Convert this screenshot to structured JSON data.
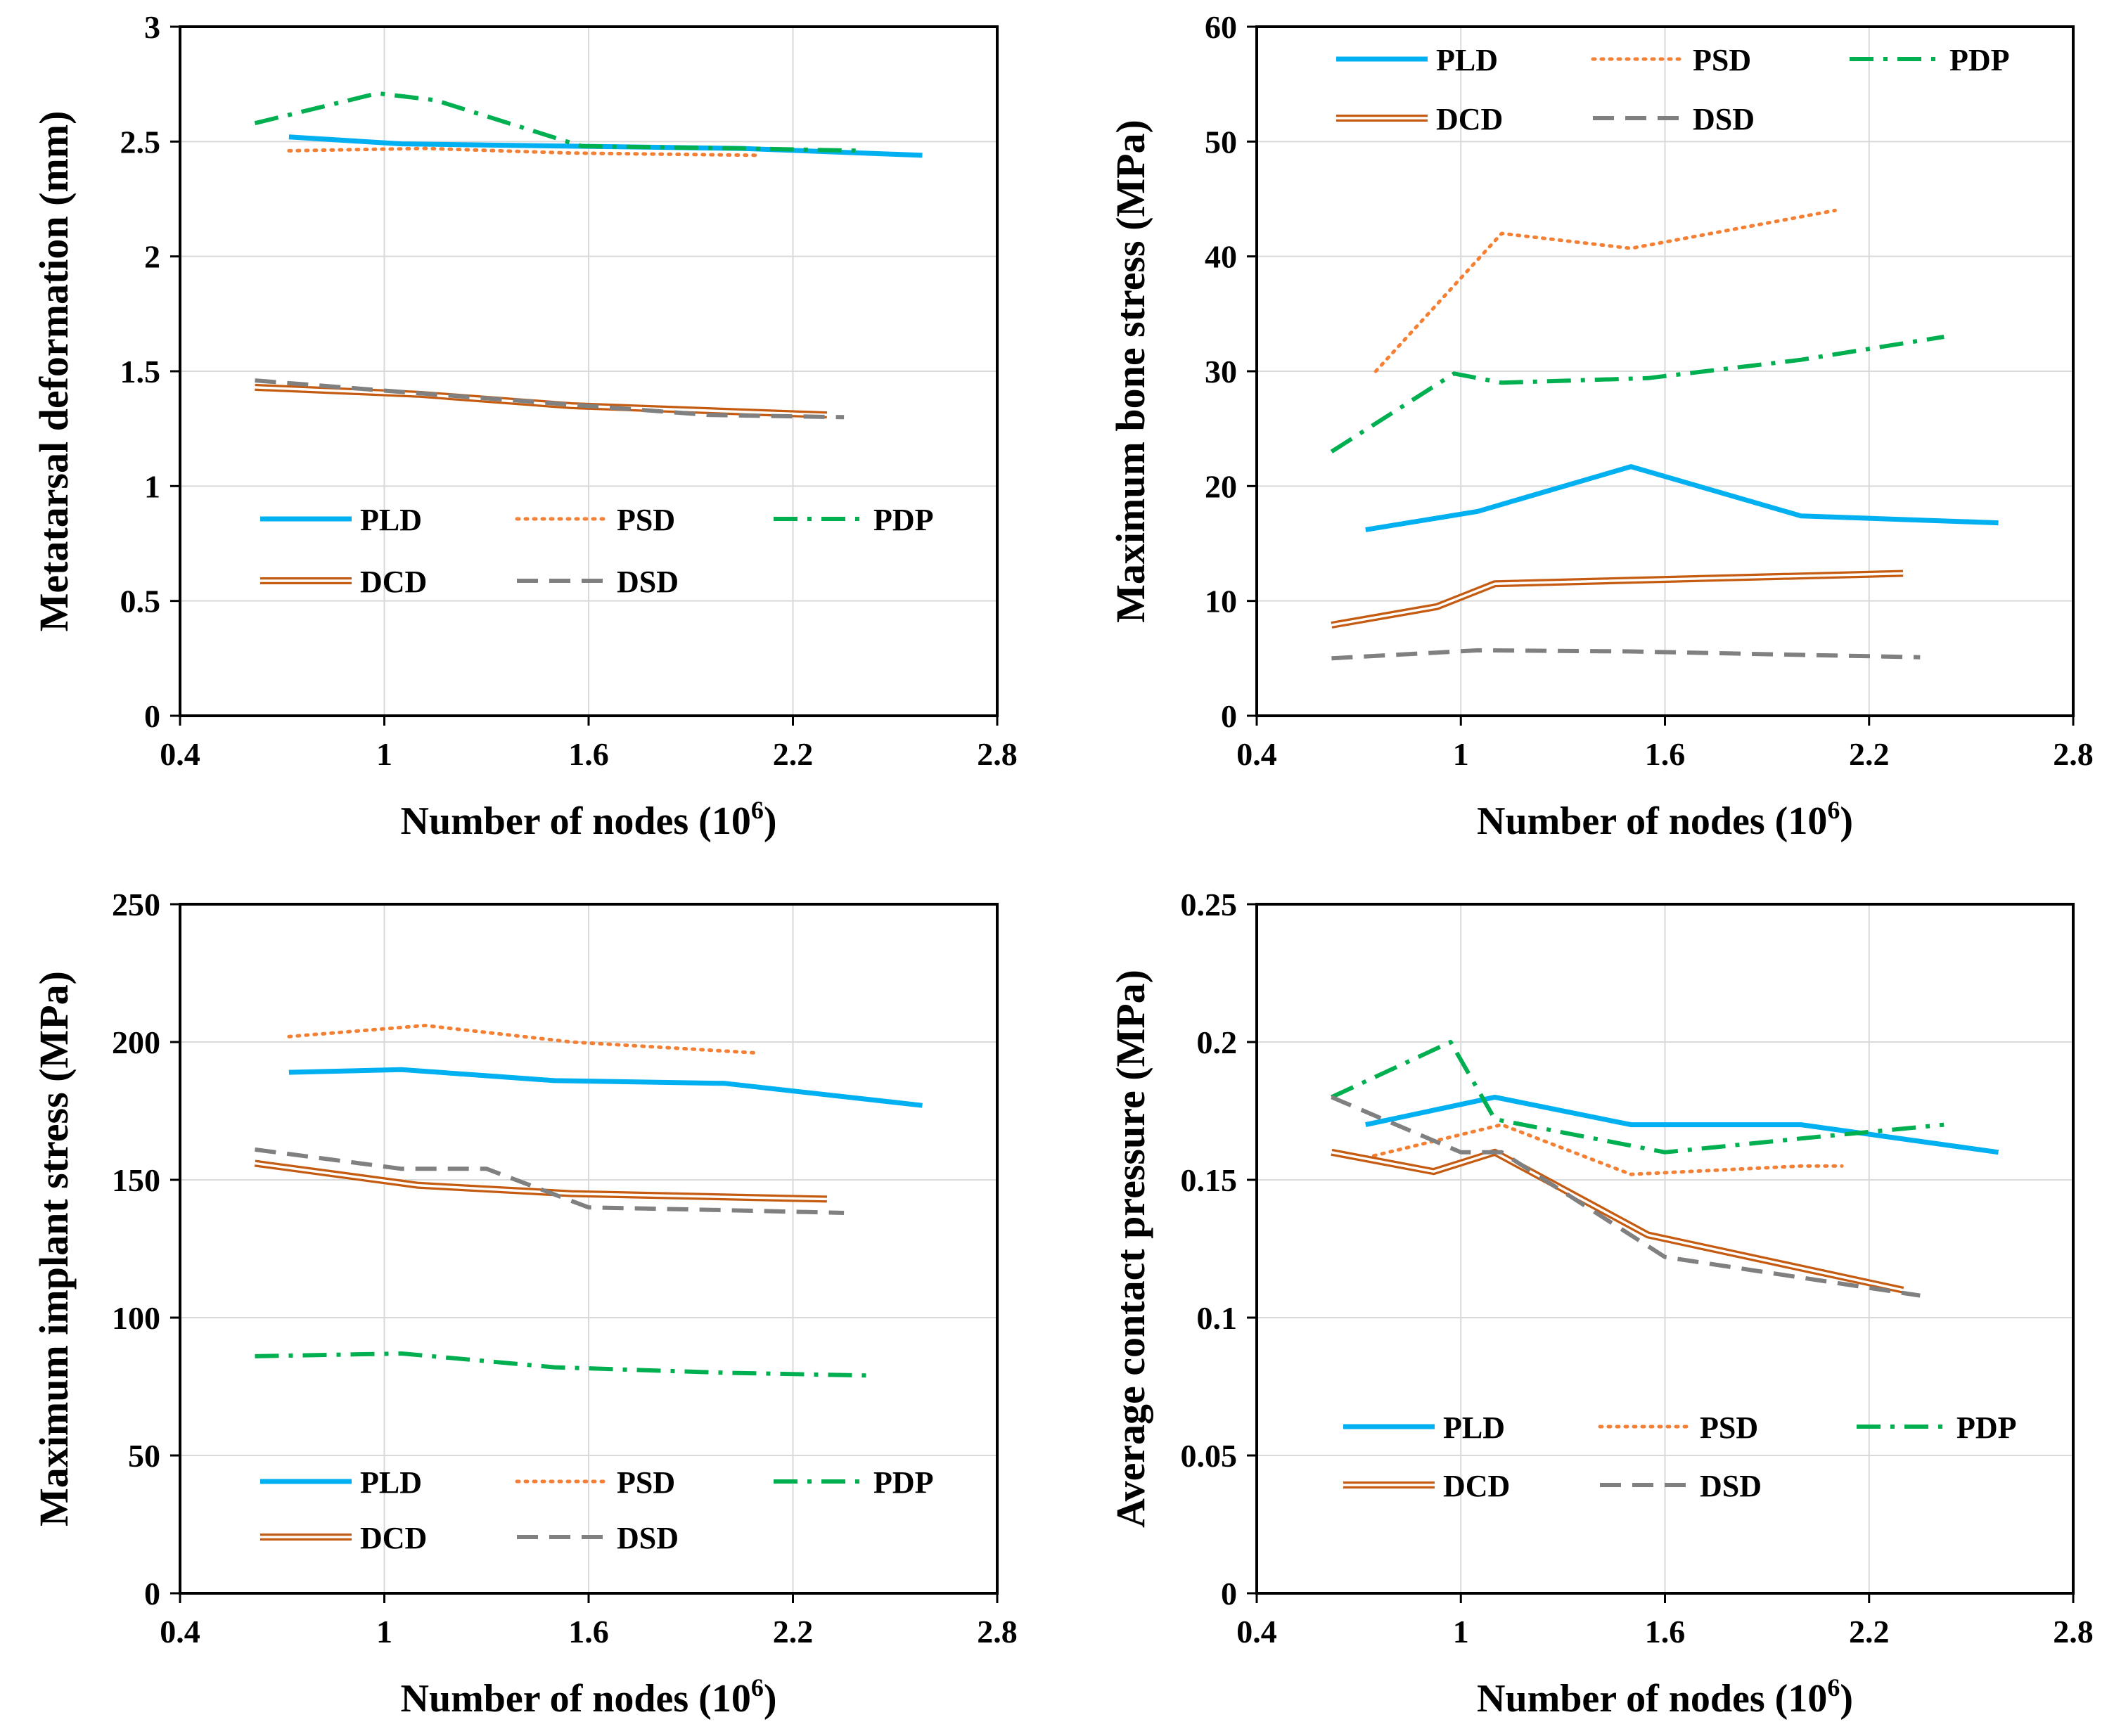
{
  "chart_data": [
    {
      "type": "line",
      "xlabel": "Number of nodes (10",
      "xlabel_sup": "6",
      "xlabel_end": ")",
      "ylabel": "Metatarsal deformation (mm)",
      "xlim": [
        0.4,
        2.8
      ],
      "ylim": [
        0,
        3
      ],
      "xticks": [
        0.4,
        1.0,
        1.6,
        2.2,
        2.8
      ],
      "xtick_labels": [
        "0.4",
        "1",
        "1.6",
        "2.2",
        "2.8"
      ],
      "yticks": [
        0,
        0.5,
        1,
        1.5,
        2,
        2.5,
        3
      ],
      "ytick_labels": [
        "0",
        "0.5",
        "1",
        "1.5",
        "2",
        "2.5",
        "3"
      ],
      "grid": true,
      "legend_position": "bottom",
      "series": [
        {
          "name": "PLD",
          "x": [
            0.72,
            1.05,
            1.55,
            2.05,
            2.58
          ],
          "y": [
            2.52,
            2.49,
            2.48,
            2.47,
            2.44
          ]
        },
        {
          "name": "PSD",
          "x": [
            0.72,
            1.12,
            1.55,
            2.1
          ],
          "y": [
            2.46,
            2.47,
            2.45,
            2.44
          ]
        },
        {
          "name": "PDP",
          "x": [
            0.62,
            0.98,
            1.15,
            1.58,
            2.05,
            2.4
          ],
          "y": [
            2.58,
            2.71,
            2.68,
            2.48,
            2.47,
            2.46
          ]
        },
        {
          "name": "DCD",
          "x": [
            0.62,
            1.1,
            1.55,
            2.3
          ],
          "y": [
            1.43,
            1.4,
            1.35,
            1.31
          ]
        },
        {
          "name": "DSD",
          "x": [
            0.62,
            1.05,
            1.5,
            1.95,
            2.35
          ],
          "y": [
            1.46,
            1.41,
            1.36,
            1.31,
            1.3
          ]
        }
      ]
    },
    {
      "type": "line",
      "xlabel": "Number of nodes (10",
      "xlabel_sup": "6",
      "xlabel_end": ")",
      "ylabel": "Maximum bone stress (MPa)",
      "xlim": [
        0.4,
        2.8
      ],
      "ylim": [
        0,
        60
      ],
      "xticks": [
        0.4,
        1.0,
        1.6,
        2.2,
        2.8
      ],
      "xtick_labels": [
        "0.4",
        "1",
        "1.6",
        "2.2",
        "2.8"
      ],
      "yticks": [
        0,
        10,
        20,
        30,
        40,
        50,
        60
      ],
      "ytick_labels": [
        "0",
        "10",
        "20",
        "30",
        "40",
        "50",
        "60"
      ],
      "grid": true,
      "legend_position": "top",
      "series": [
        {
          "name": "PLD",
          "x": [
            0.72,
            1.05,
            1.5,
            2.0,
            2.58
          ],
          "y": [
            16.2,
            17.8,
            21.7,
            17.4,
            16.8
          ]
        },
        {
          "name": "PSD",
          "x": [
            0.75,
            1.12,
            1.5,
            2.1
          ],
          "y": [
            30.0,
            42.0,
            40.7,
            44.0
          ]
        },
        {
          "name": "PDP",
          "x": [
            0.62,
            0.98,
            1.12,
            1.55,
            2.0,
            2.42
          ],
          "y": [
            23.0,
            29.8,
            29.0,
            29.4,
            31.0,
            33.0
          ]
        },
        {
          "name": "DCD",
          "x": [
            0.62,
            0.93,
            1.1,
            2.3
          ],
          "y": [
            7.9,
            9.5,
            11.5,
            12.4
          ]
        },
        {
          "name": "DSD",
          "x": [
            0.62,
            1.05,
            1.5,
            2.0,
            2.35
          ],
          "y": [
            5.0,
            5.7,
            5.6,
            5.3,
            5.1
          ]
        }
      ]
    },
    {
      "type": "line",
      "xlabel": "Number of nodes (10",
      "xlabel_sup": "6",
      "xlabel_end": ")",
      "ylabel": "Maximum implant stress (MPa)",
      "xlim": [
        0.4,
        2.8
      ],
      "ylim": [
        0,
        250
      ],
      "xticks": [
        0.4,
        1.0,
        1.6,
        2.2,
        2.8
      ],
      "xtick_labels": [
        "0.4",
        "1",
        "1.6",
        "2.2",
        "2.8"
      ],
      "yticks": [
        0,
        50,
        100,
        150,
        200,
        250
      ],
      "ytick_labels": [
        "0",
        "50",
        "100",
        "150",
        "200",
        "250"
      ],
      "grid": true,
      "legend_position": "bottom",
      "series": [
        {
          "name": "PLD",
          "x": [
            0.72,
            1.05,
            1.5,
            2.0,
            2.58
          ],
          "y": [
            189,
            190,
            186,
            185,
            177
          ]
        },
        {
          "name": "PSD",
          "x": [
            0.72,
            1.12,
            1.55,
            2.1
          ],
          "y": [
            202,
            206,
            200,
            196
          ]
        },
        {
          "name": "PDP",
          "x": [
            0.62,
            1.05,
            1.5,
            2.0,
            2.42
          ],
          "y": [
            86,
            87,
            82,
            80,
            79
          ]
        },
        {
          "name": "DCD",
          "x": [
            0.62,
            1.1,
            1.55,
            2.3
          ],
          "y": [
            156,
            148,
            145,
            143
          ]
        },
        {
          "name": "DSD",
          "x": [
            0.62,
            1.05,
            1.3,
            1.6,
            2.0,
            2.35
          ],
          "y": [
            161,
            154,
            154,
            140,
            139,
            138
          ]
        }
      ]
    },
    {
      "type": "line",
      "xlabel": "Number of nodes (10",
      "xlabel_sup": "6",
      "xlabel_end": ")",
      "ylabel": "Average contact pressure (MPa)",
      "xlim": [
        0.4,
        2.8
      ],
      "ylim": [
        0,
        0.25
      ],
      "xticks": [
        0.4,
        1.0,
        1.6,
        2.2,
        2.8
      ],
      "xtick_labels": [
        "0.4",
        "1",
        "1.6",
        "2.2",
        "2.8"
      ],
      "yticks": [
        0,
        0.05,
        0.1,
        0.15,
        0.2,
        0.25
      ],
      "ytick_labels": [
        "0",
        "0.05",
        "0.1",
        "0.15",
        "0.2",
        "0.25"
      ],
      "grid": true,
      "legend_position": "bottom",
      "series": [
        {
          "name": "PLD",
          "x": [
            0.72,
            1.1,
            1.5,
            2.0,
            2.58
          ],
          "y": [
            0.17,
            0.18,
            0.17,
            0.17,
            0.16
          ]
        },
        {
          "name": "PSD",
          "x": [
            0.72,
            1.12,
            1.5,
            2.0,
            2.12
          ],
          "y": [
            0.158,
            0.17,
            0.152,
            0.155,
            0.155
          ]
        },
        {
          "name": "PDP",
          "x": [
            0.62,
            0.97,
            1.1,
            1.6,
            2.0,
            2.42
          ],
          "y": [
            0.18,
            0.2,
            0.172,
            0.16,
            0.165,
            0.17
          ]
        },
        {
          "name": "DCD",
          "x": [
            0.62,
            0.92,
            1.1,
            1.55,
            2.3
          ],
          "y": [
            0.16,
            0.153,
            0.16,
            0.13,
            0.11
          ]
        },
        {
          "name": "DSD",
          "x": [
            0.62,
            1.0,
            1.12,
            1.6,
            2.35
          ],
          "y": [
            0.18,
            0.16,
            0.16,
            0.122,
            0.108
          ]
        }
      ]
    }
  ],
  "styles": {
    "PLD": {
      "color": "#00b0f0",
      "kind": "solid"
    },
    "PSD": {
      "color": "#f57f32",
      "kind": "dotted"
    },
    "PDP": {
      "color": "#00b050",
      "kind": "dashdot"
    },
    "DCD": {
      "color": "#c55a11",
      "kind": "double"
    },
    "DSD": {
      "color": "#808080",
      "kind": "dashed"
    }
  },
  "grid_color": "#d9d9d9"
}
